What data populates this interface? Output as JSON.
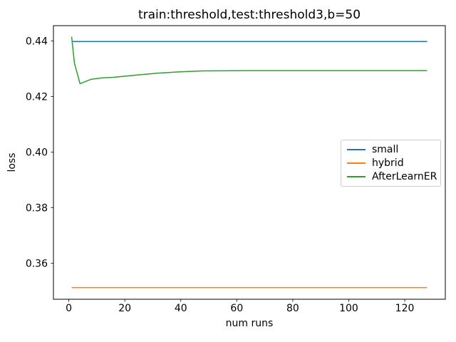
{
  "figure": {
    "background": "#ffffff",
    "text_color": "#000000"
  },
  "chart_data": {
    "type": "line",
    "title": "train:threshold,test:threshold3,b=50",
    "xlabel": "num runs",
    "ylabel": "loss",
    "xlim": [
      -5.5,
      134.5
    ],
    "ylim": [
      0.347,
      0.4455
    ],
    "xtick_values": [
      0,
      20,
      40,
      60,
      80,
      100,
      120
    ],
    "xtick_labels": [
      "0",
      "20",
      "40",
      "60",
      "80",
      "100",
      "120"
    ],
    "ytick_values": [
      0.36,
      0.38,
      0.4,
      0.42,
      0.44
    ],
    "ytick_labels": [
      "0.36",
      "0.38",
      "0.40",
      "0.42",
      "0.44"
    ],
    "grid": false,
    "legend_position": "center right",
    "series": [
      {
        "name": "small",
        "color": "#1f77b4",
        "x": [
          1,
          128
        ],
        "y": [
          0.4398,
          0.4398
        ]
      },
      {
        "name": "hybrid",
        "color": "#ff7f0e",
        "x": [
          1,
          128
        ],
        "y": [
          0.3512,
          0.3512
        ]
      },
      {
        "name": "AfterLearnER",
        "color": "#2ca02c",
        "x": [
          1,
          2,
          4,
          8,
          12,
          16,
          24,
          32,
          40,
          48,
          64,
          96,
          128
        ],
        "y": [
          0.4415,
          0.432,
          0.4246,
          0.4262,
          0.4267,
          0.4269,
          0.4277,
          0.4284,
          0.4289,
          0.4292,
          0.4293,
          0.4293,
          0.4293
        ]
      }
    ]
  }
}
